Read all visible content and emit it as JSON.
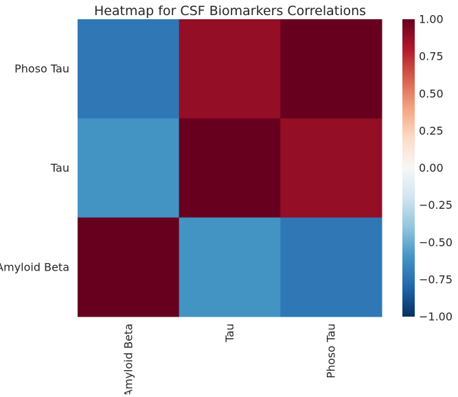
{
  "chart_data": {
    "type": "heatmap",
    "title": "Heatmap for CSF Biomarkers Correlations",
    "xlabel": "",
    "ylabel": "",
    "x_categories": [
      "Amyloid Beta",
      "Tau",
      "Phoso Tau"
    ],
    "y_categories": [
      "Phoso Tau",
      "Tau",
      "Amyloid Beta"
    ],
    "values": [
      [
        -0.72,
        0.88,
        1.0
      ],
      [
        -0.6,
        1.0,
        0.88
      ],
      [
        1.0,
        -0.6,
        -0.72
      ]
    ],
    "colorbar": {
      "colormap": "RdBu_r",
      "range": [
        -1.0,
        1.0
      ],
      "ticks": [
        "1.00",
        "0.75",
        "0.50",
        "0.25",
        "0.00",
        "−0.25",
        "−0.50",
        "−0.75",
        "−1.00"
      ]
    },
    "grid": false,
    "legend": "colorbar right"
  }
}
